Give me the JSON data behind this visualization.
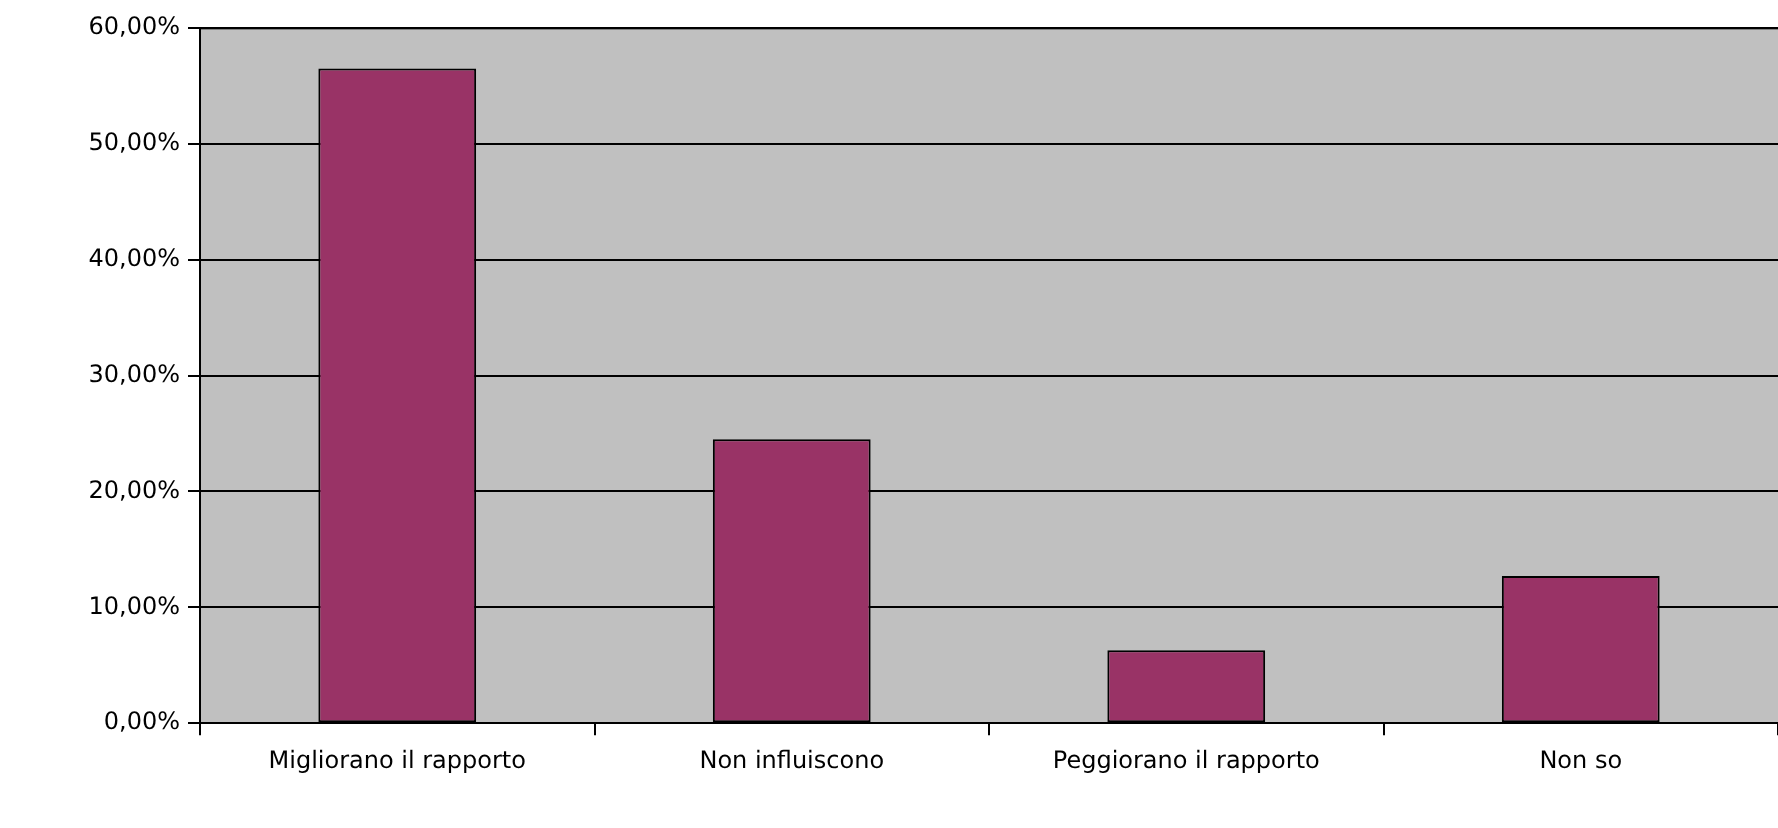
{
  "chart_data": {
    "type": "bar",
    "categories": [
      "Migliorano il rapporto",
      "Non influiscono",
      "Peggiorano il rapporto",
      "Non so"
    ],
    "values": [
      56.5,
      24.5,
      6.3,
      12.7
    ],
    "color": "#993366",
    "ylim": [
      0,
      60
    ],
    "yticks": [
      {
        "value": 0,
        "label": "0,00%"
      },
      {
        "value": 10,
        "label": "10,00%"
      },
      {
        "value": 20,
        "label": "20,00%"
      },
      {
        "value": 30,
        "label": "30,00%"
      },
      {
        "value": 40,
        "label": "40,00%"
      },
      {
        "value": 50,
        "label": "50,00%"
      },
      {
        "value": 60,
        "label": "60,00%"
      }
    ],
    "grid": "y",
    "legend": false
  }
}
